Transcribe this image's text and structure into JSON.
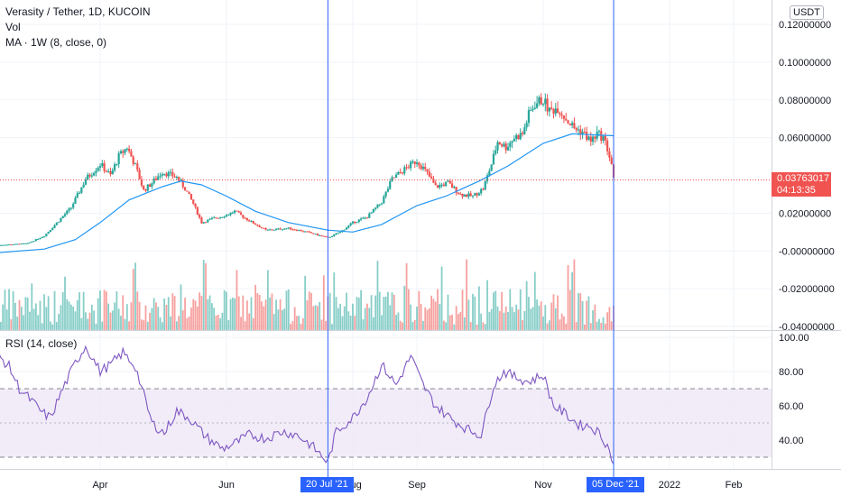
{
  "header": {
    "title": "Verasity / Tether, 1D, KUCOIN",
    "vol_label": "Vol",
    "ma_label": "MA · 1W (8, close, 0)",
    "rsi_label": "RSI (14, close)",
    "currency": "USDT"
  },
  "price_tag": {
    "value": "0.03763017",
    "countdown": "04:13:35"
  },
  "crosshairs": [
    {
      "date_label": "20 Jul '21"
    },
    {
      "date_label": "05 Dec '21"
    }
  ],
  "colors": {
    "up": "#26a69a",
    "down": "#ef5350",
    "ma": "#2196f3",
    "rsi": "#7e57c2",
    "marker": "#2962ff",
    "band": "#ede7f6"
  },
  "chart_data": [
    {
      "type": "candlestick",
      "title": "Verasity / Tether, 1D, KUCOIN",
      "ylim": [
        -0.04,
        0.12
      ],
      "y_ticks": [
        {
          "value": 0.12,
          "label": "0.12000000"
        },
        {
          "value": 0.1,
          "label": "0.10000000"
        },
        {
          "value": 0.08,
          "label": "0.08000000"
        },
        {
          "value": 0.06,
          "label": "0.06000000"
        },
        {
          "value": 0.02,
          "label": "0.02000000"
        },
        {
          "value": 0.0,
          "label": "-0.00000000"
        },
        {
          "value": -0.02,
          "label": "-0.02000000"
        },
        {
          "value": -0.04,
          "label": "-0.04000000"
        }
      ],
      "x_ticks": [
        {
          "date": "2021-04-01",
          "label": "Apr"
        },
        {
          "date": "2021-06-01",
          "label": "Jun"
        },
        {
          "date": "2021-08-01",
          "label": "Aug"
        },
        {
          "date": "2021-09-01",
          "label": "Sep"
        },
        {
          "date": "2021-11-01",
          "label": "Nov"
        },
        {
          "date": "2022-01-01",
          "label": "2022"
        },
        {
          "date": "2022-02-01",
          "label": "Feb"
        }
      ],
      "close_keypoints": [
        [
          "2021-02-10",
          0.003
        ],
        [
          "2021-02-25",
          0.004
        ],
        [
          "2021-03-05",
          0.008
        ],
        [
          "2021-03-12",
          0.016
        ],
        [
          "2021-03-18",
          0.023
        ],
        [
          "2021-03-25",
          0.038
        ],
        [
          "2021-04-01",
          0.046
        ],
        [
          "2021-04-06",
          0.04
        ],
        [
          "2021-04-10",
          0.05
        ],
        [
          "2021-04-14",
          0.055
        ],
        [
          "2021-04-18",
          0.045
        ],
        [
          "2021-04-22",
          0.032
        ],
        [
          "2021-04-26",
          0.036
        ],
        [
          "2021-05-01",
          0.042
        ],
        [
          "2021-05-08",
          0.039
        ],
        [
          "2021-05-12",
          0.033
        ],
        [
          "2021-05-16",
          0.025
        ],
        [
          "2021-05-20",
          0.015
        ],
        [
          "2021-05-25",
          0.017
        ],
        [
          "2021-06-01",
          0.019
        ],
        [
          "2021-06-05",
          0.021
        ],
        [
          "2021-06-12",
          0.016
        ],
        [
          "2021-06-20",
          0.011
        ],
        [
          "2021-07-01",
          0.012
        ],
        [
          "2021-07-10",
          0.01
        ],
        [
          "2021-07-20",
          0.007
        ],
        [
          "2021-07-26",
          0.01
        ],
        [
          "2021-08-01",
          0.015
        ],
        [
          "2021-08-08",
          0.018
        ],
        [
          "2021-08-15",
          0.026
        ],
        [
          "2021-08-20",
          0.038
        ],
        [
          "2021-08-27",
          0.044
        ],
        [
          "2021-09-01",
          0.048
        ],
        [
          "2021-09-06",
          0.041
        ],
        [
          "2021-09-10",
          0.034
        ],
        [
          "2021-09-16",
          0.036
        ],
        [
          "2021-09-22",
          0.03
        ],
        [
          "2021-09-28",
          0.029
        ],
        [
          "2021-10-03",
          0.033
        ],
        [
          "2021-10-07",
          0.046
        ],
        [
          "2021-10-10",
          0.058
        ],
        [
          "2021-10-14",
          0.055
        ],
        [
          "2021-10-18",
          0.06
        ],
        [
          "2021-10-22",
          0.062
        ],
        [
          "2021-10-25",
          0.072
        ],
        [
          "2021-10-28",
          0.078
        ],
        [
          "2021-11-01",
          0.08
        ],
        [
          "2021-11-04",
          0.074
        ],
        [
          "2021-11-08",
          0.076
        ],
        [
          "2021-11-12",
          0.07
        ],
        [
          "2021-11-16",
          0.065
        ],
        [
          "2021-11-20",
          0.063
        ],
        [
          "2021-11-24",
          0.058
        ],
        [
          "2021-11-27",
          0.062
        ],
        [
          "2021-11-30",
          0.06
        ],
        [
          "2021-12-02",
          0.054
        ],
        [
          "2021-12-04",
          0.046
        ],
        [
          "2021-12-05",
          0.0376
        ]
      ],
      "ma_series": {
        "name": "MA · 1W (8, close, 0)",
        "points": [
          [
            "2021-02-10",
            -0.001
          ],
          [
            "2021-03-05",
            0.001
          ],
          [
            "2021-03-20",
            0.006
          ],
          [
            "2021-04-01",
            0.015
          ],
          [
            "2021-04-15",
            0.027
          ],
          [
            "2021-05-01",
            0.034
          ],
          [
            "2021-05-10",
            0.037
          ],
          [
            "2021-05-20",
            0.035
          ],
          [
            "2021-06-01",
            0.029
          ],
          [
            "2021-06-15",
            0.021
          ],
          [
            "2021-07-01",
            0.015
          ],
          [
            "2021-07-20",
            0.011
          ],
          [
            "2021-08-01",
            0.01
          ],
          [
            "2021-08-15",
            0.014
          ],
          [
            "2021-09-01",
            0.024
          ],
          [
            "2021-09-15",
            0.029
          ],
          [
            "2021-10-01",
            0.037
          ],
          [
            "2021-10-15",
            0.045
          ],
          [
            "2021-11-01",
            0.057
          ],
          [
            "2021-11-15",
            0.062
          ],
          [
            "2021-12-05",
            0.061
          ]
        ]
      },
      "last_price": 0.03763017
    },
    {
      "type": "line",
      "title": "RSI (14, close)",
      "ylim": [
        25,
        100
      ],
      "y_ticks": [
        {
          "value": 100,
          "label": "100.00"
        },
        {
          "value": 80,
          "label": "80.00"
        },
        {
          "value": 60,
          "label": "60.00"
        },
        {
          "value": 40,
          "label": "40.00"
        }
      ],
      "bands": {
        "upper": 70,
        "middle": 50,
        "lower": 30
      },
      "keypoints": [
        [
          "2021-02-10",
          90
        ],
        [
          "2021-02-16",
          83
        ],
        [
          "2021-02-21",
          70
        ],
        [
          "2021-02-26",
          64
        ],
        [
          "2021-03-04",
          56
        ],
        [
          "2021-03-08",
          53
        ],
        [
          "2021-03-14",
          70
        ],
        [
          "2021-03-20",
          85
        ],
        [
          "2021-03-25",
          95
        ],
        [
          "2021-04-01",
          80
        ],
        [
          "2021-04-06",
          84
        ],
        [
          "2021-04-12",
          91
        ],
        [
          "2021-04-18",
          83
        ],
        [
          "2021-04-26",
          50
        ],
        [
          "2021-05-02",
          44
        ],
        [
          "2021-05-08",
          57
        ],
        [
          "2021-05-14",
          53
        ],
        [
          "2021-05-22",
          42
        ],
        [
          "2021-05-30",
          35
        ],
        [
          "2021-06-05",
          38
        ],
        [
          "2021-06-12",
          43
        ],
        [
          "2021-06-20",
          41
        ],
        [
          "2021-06-28",
          45
        ],
        [
          "2021-07-05",
          43
        ],
        [
          "2021-07-12",
          37
        ],
        [
          "2021-07-20",
          27
        ],
        [
          "2021-07-24",
          45
        ],
        [
          "2021-08-01",
          53
        ],
        [
          "2021-08-08",
          65
        ],
        [
          "2021-08-15",
          84
        ],
        [
          "2021-08-22",
          72
        ],
        [
          "2021-08-29",
          89
        ],
        [
          "2021-09-04",
          72
        ],
        [
          "2021-09-10",
          60
        ],
        [
          "2021-09-18",
          52
        ],
        [
          "2021-09-26",
          46
        ],
        [
          "2021-10-02",
          43
        ],
        [
          "2021-10-08",
          72
        ],
        [
          "2021-10-13",
          80
        ],
        [
          "2021-10-18",
          77
        ],
        [
          "2021-10-25",
          74
        ],
        [
          "2021-11-01",
          78
        ],
        [
          "2021-11-06",
          60
        ],
        [
          "2021-11-12",
          55
        ],
        [
          "2021-11-18",
          49
        ],
        [
          "2021-11-24",
          48
        ],
        [
          "2021-11-28",
          44
        ],
        [
          "2021-12-02",
          37
        ],
        [
          "2021-12-05",
          26
        ]
      ]
    }
  ]
}
